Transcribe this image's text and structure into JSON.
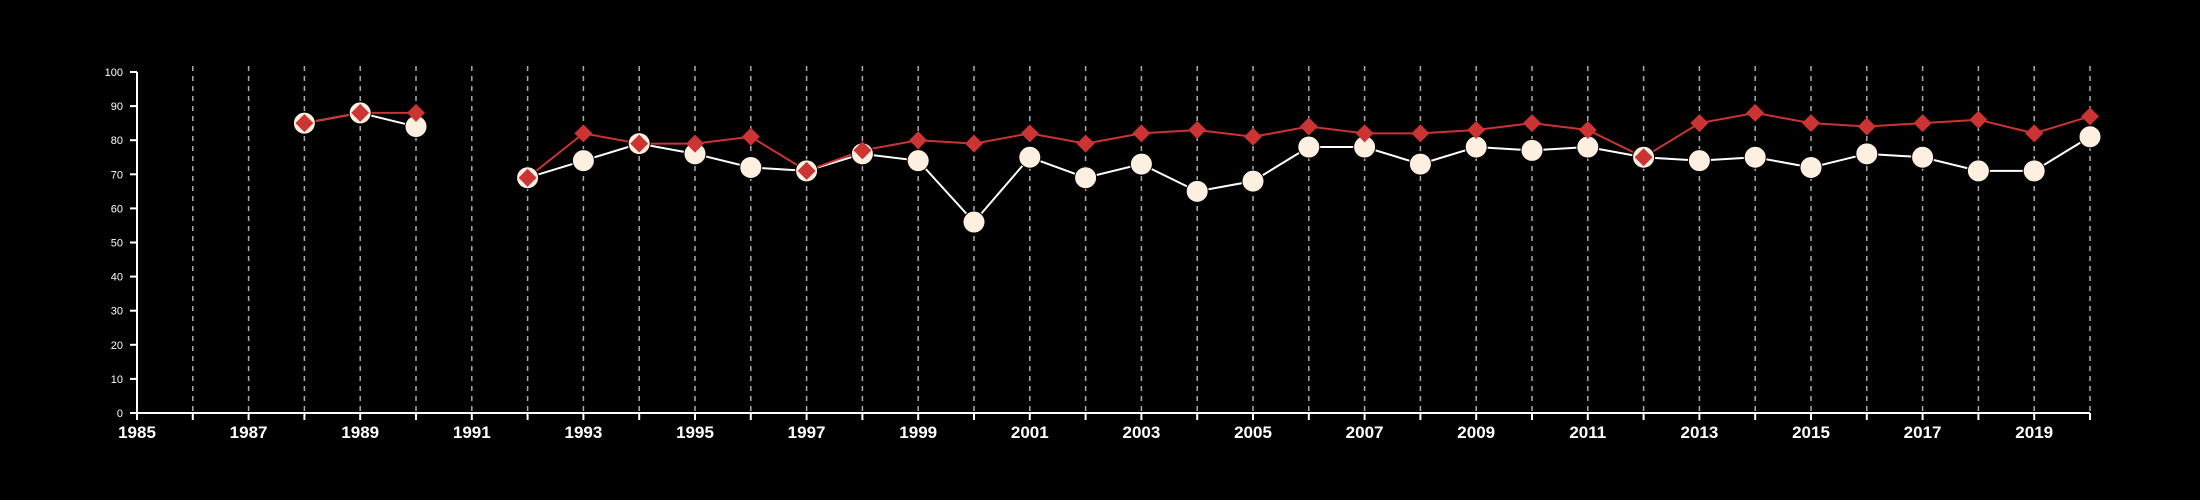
{
  "colors": {
    "background": "#000000",
    "axis": "#ffffff",
    "gridline": "#aaaaaa",
    "series_red": "#cc3333",
    "series_white_line": "#ffffff",
    "series_white_marker": "#fdf0e0"
  },
  "chart_data": {
    "type": "line",
    "title": "",
    "xlabel": "",
    "ylabel": "",
    "xlim": [
      1985,
      2020
    ],
    "ylim": [
      0,
      100
    ],
    "x_ticks": [
      1985,
      1987,
      1989,
      1991,
      1993,
      1995,
      1997,
      1999,
      2001,
      2003,
      2005,
      2007,
      2009,
      2011,
      2013,
      2015,
      2017,
      2019
    ],
    "y_ticks": [
      0,
      10,
      20,
      30,
      40,
      50,
      60,
      70,
      80,
      90,
      100
    ],
    "vertical_grid": "dashed, every year",
    "legend": "none",
    "series": [
      {
        "marker": "circle",
        "color_key": "series_white_marker",
        "x": [
          1988,
          1989,
          1990,
          1991,
          1992,
          1993,
          1994,
          1995,
          1996,
          1997,
          1998,
          1999,
          2000,
          2001,
          2002,
          2003,
          2004,
          2005,
          2006,
          2007,
          2008,
          2009,
          2010,
          2011,
          2012,
          2013,
          2014,
          2015,
          2016,
          2017,
          2018,
          2019,
          2020
        ],
        "values": [
          85,
          88,
          84,
          null,
          69,
          74,
          79,
          76,
          72,
          71,
          76,
          74,
          56,
          75,
          69,
          73,
          65,
          68,
          78,
          78,
          73,
          78,
          77,
          78,
          75,
          74,
          75,
          72,
          76,
          75,
          71,
          71,
          81
        ]
      },
      {
        "marker": "diamond",
        "color_key": "series_red",
        "x": [
          1988,
          1989,
          1990,
          1991,
          1992,
          1993,
          1994,
          1995,
          1996,
          1997,
          1998,
          1999,
          2000,
          2001,
          2002,
          2003,
          2004,
          2005,
          2006,
          2007,
          2008,
          2009,
          2010,
          2011,
          2012,
          2013,
          2014,
          2015,
          2016,
          2017,
          2018,
          2019,
          2020
        ],
        "values": [
          85,
          88,
          88,
          null,
          69,
          82,
          79,
          79,
          81,
          71,
          77,
          80,
          79,
          82,
          79,
          82,
          83,
          81,
          84,
          82,
          82,
          83,
          85,
          83,
          75,
          85,
          88,
          85,
          84,
          85,
          86,
          82,
          87
        ]
      }
    ]
  }
}
